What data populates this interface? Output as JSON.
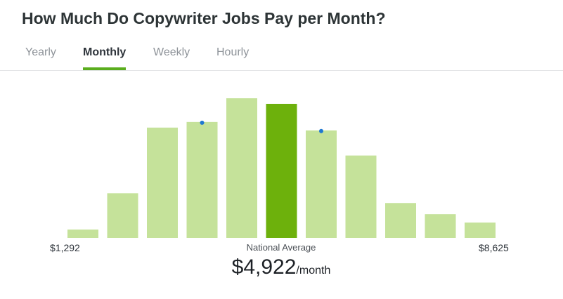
{
  "page": {
    "title": "How Much Do Copywriter Jobs Pay per Month?"
  },
  "tabs": [
    {
      "label": "Yearly",
      "active": false
    },
    {
      "label": "Monthly",
      "active": true
    },
    {
      "label": "Weekly",
      "active": false
    },
    {
      "label": "Hourly",
      "active": false
    }
  ],
  "colors": {
    "bar": "#c5e29a",
    "bar_highlight": "#6db10c",
    "marker": "#1f78d1",
    "tab_underline": "#5aad1d"
  },
  "chart_data": {
    "type": "bar",
    "values": [
      6,
      32,
      79,
      83,
      100,
      96,
      77,
      59,
      25,
      17,
      11
    ],
    "highlight_index": 5,
    "markers": [
      3,
      6
    ],
    "ylim": [
      0,
      100
    ],
    "range_min_label": "$1,292",
    "range_max_label": "$8,625",
    "average_label": "National Average",
    "average_value": "$4,922",
    "average_unit": "/month"
  }
}
